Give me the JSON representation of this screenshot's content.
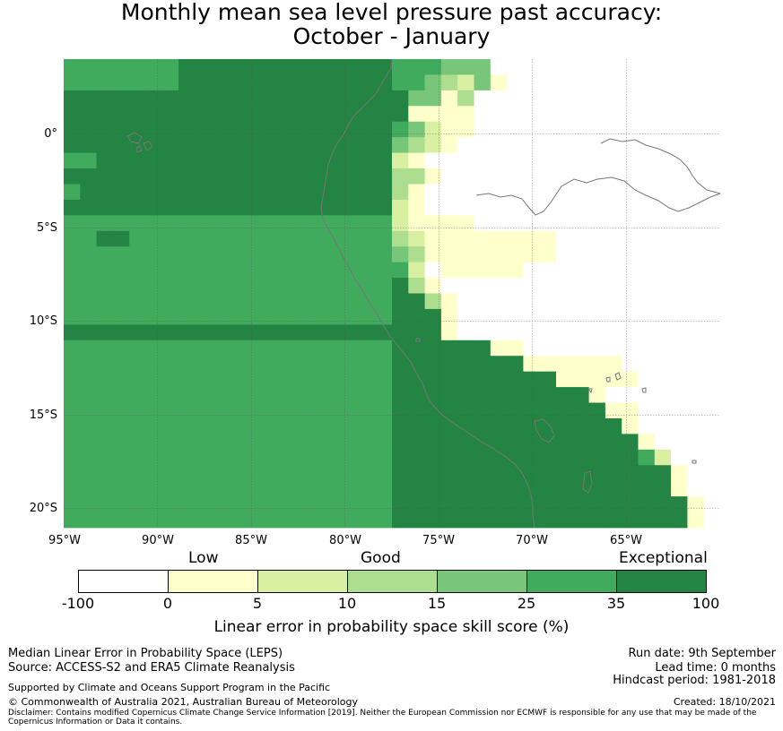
{
  "title": {
    "line1": "Monthly mean sea level pressure past accuracy:",
    "line2": "October - January"
  },
  "map": {
    "y_ticks": [
      "0°",
      "5°S",
      "10°S",
      "15°S",
      "20°S"
    ],
    "x_ticks": [
      "95°W",
      "90°W",
      "85°W",
      "80°W",
      "75°W",
      "70°W",
      "65°W"
    ],
    "colors": {
      "c0": "#ffffff",
      "c1": "#ffffcc",
      "c2": "#d9f0a3",
      "c3": "#addd8e",
      "c4": "#78c679",
      "c5": "#41ab5d",
      "c6": "#238443"
    },
    "grid_rows": [
      "5555555666666666666655544400000000000000",
      "5555555666666666666655432410000000000000",
      "6666666666666666666664413000000000000000",
      "6666666666666666666661111000000000000000",
      "6666666666666666666654211000000000000000",
      "6666666666666666666643210000000000000000",
      "5566666666666666666621000000000000000000",
      "6666666666666666666633100000000000000000",
      "5666666666666666666631000000000000000000",
      "6666666666666666666621000000000000000000",
      "5555555555555555555521111000000000000000",
      "5566555555555555555532111111110000000000",
      "5555555555555555555543111111110000000000",
      "5555555555555555555552011111000000000000",
      "5555555555555555555563100000000000000000",
      "5555555555555555555566310000000000000000",
      "5555555555555555555566610000000000000000",
      "6666666666666666666666610000000000000000",
      "5555555555555555555566666611000000000000",
      "5555555555555555555566666666111111000000",
      "5555555555555555555566666666661111100000",
      "5555555555555555555566666666666610000000",
      "5555555555555555555566666666666661100000",
      "5555555555555555555566666666666666100000",
      "5555555555555555555566666666666666610000",
      "5555555555555555555566666666666666652000",
      "5555555555555555555566666666666666666100",
      "5555555555555555555566666666666666666100",
      "5555555555555555555566666666666666666610",
      "5555555555555555555566666666666666666610"
    ]
  },
  "colorbar": {
    "categories": [
      "Low",
      "Good",
      "Exceptional"
    ],
    "tick_labels": [
      "-100",
      "0",
      "5",
      "10",
      "15",
      "25",
      "35",
      "100"
    ],
    "label": "Linear error in probability space skill score (%)"
  },
  "footer": {
    "method": "Median Linear Error in Probability Space (LEPS)",
    "source": "Source: ACCESS-S2 and ERA5 Climate Reanalysis",
    "support": "Supported by Climate and Oceans Support Program in the Pacific",
    "copyright": "© Commonwealth of Australia 2021, Australian Bureau of Meteorology",
    "disclaimer": "Disclaimer: Contains modified Copernicus Climate Change Service Information [2019]. Neither the European Commission nor ECMWF is responsible for any use that may be made of the Copernicus Information or Data it contains.",
    "run_date": "Run date: 9th September",
    "lead_time": "Lead time: 0 months",
    "hindcast": "Hindcast period: 1981-2018",
    "created": "Created: 18/10/2021"
  }
}
